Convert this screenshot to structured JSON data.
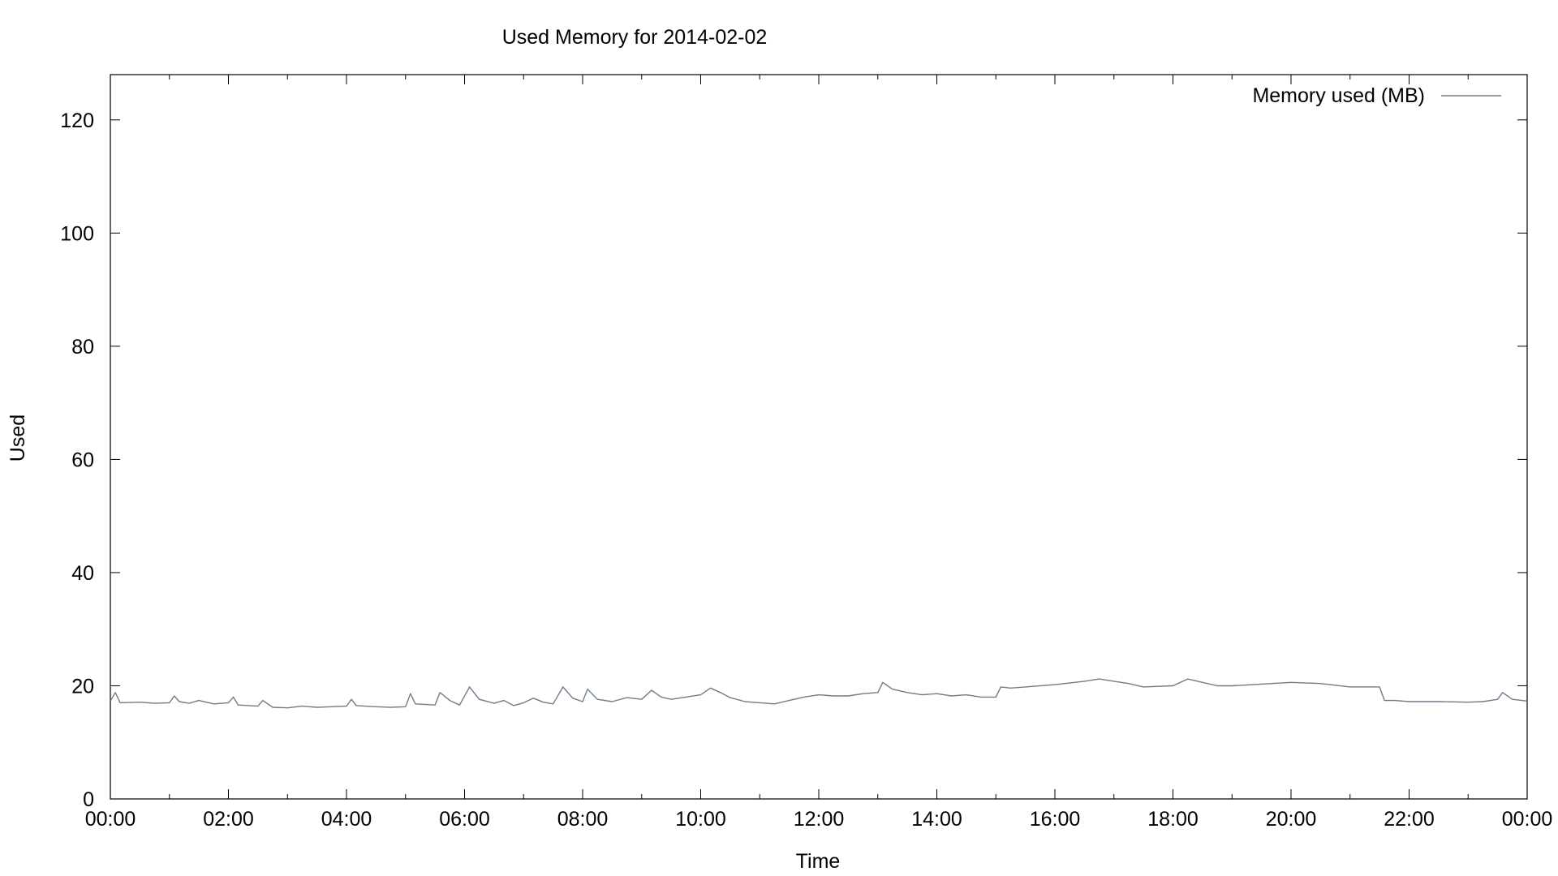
{
  "chart_data": {
    "type": "line",
    "title": "Used Memory for 2014-02-02",
    "xlabel": "Time",
    "ylabel": "Used",
    "x_ticks": [
      "00:00",
      "02:00",
      "04:00",
      "06:00",
      "08:00",
      "10:00",
      "12:00",
      "14:00",
      "16:00",
      "18:00",
      "20:00",
      "22:00",
      "00:00"
    ],
    "y_ticks": [
      0,
      20,
      40,
      60,
      80,
      100,
      120
    ],
    "xlim": [
      "00:00",
      "24:00"
    ],
    "ylim": [
      0,
      128
    ],
    "grid": false,
    "legend_position": "top-right",
    "colors": {
      "series": "#6f7c8b",
      "axes": "#000000",
      "background": "#ffffff"
    },
    "series": [
      {
        "name": "Memory used (MB)",
        "points": [
          [
            "00:00",
            17.3
          ],
          [
            "00:05",
            18.8
          ],
          [
            "00:10",
            17.0
          ],
          [
            "00:30",
            17.1
          ],
          [
            "00:45",
            16.9
          ],
          [
            "01:00",
            17.0
          ],
          [
            "01:05",
            18.2
          ],
          [
            "01:10",
            17.2
          ],
          [
            "01:20",
            16.9
          ],
          [
            "01:30",
            17.4
          ],
          [
            "01:45",
            16.8
          ],
          [
            "02:00",
            17.0
          ],
          [
            "02:05",
            18.0
          ],
          [
            "02:10",
            16.6
          ],
          [
            "02:30",
            16.4
          ],
          [
            "02:35",
            17.4
          ],
          [
            "02:45",
            16.2
          ],
          [
            "03:00",
            16.1
          ],
          [
            "03:15",
            16.4
          ],
          [
            "03:30",
            16.2
          ],
          [
            "03:45",
            16.3
          ],
          [
            "04:00",
            16.4
          ],
          [
            "04:05",
            17.6
          ],
          [
            "04:10",
            16.5
          ],
          [
            "04:30",
            16.3
          ],
          [
            "04:45",
            16.2
          ],
          [
            "05:00",
            16.3
          ],
          [
            "05:05",
            18.6
          ],
          [
            "05:10",
            16.8
          ],
          [
            "05:30",
            16.6
          ],
          [
            "05:35",
            18.8
          ],
          [
            "05:45",
            17.4
          ],
          [
            "05:55",
            16.6
          ],
          [
            "06:05",
            19.8
          ],
          [
            "06:15",
            17.6
          ],
          [
            "06:30",
            16.9
          ],
          [
            "06:40",
            17.4
          ],
          [
            "06:50",
            16.5
          ],
          [
            "07:00",
            17.0
          ],
          [
            "07:10",
            17.8
          ],
          [
            "07:20",
            17.1
          ],
          [
            "07:30",
            16.8
          ],
          [
            "07:40",
            19.8
          ],
          [
            "07:50",
            17.8
          ],
          [
            "08:00",
            17.2
          ],
          [
            "08:05",
            19.4
          ],
          [
            "08:15",
            17.6
          ],
          [
            "08:30",
            17.2
          ],
          [
            "08:45",
            17.9
          ],
          [
            "09:00",
            17.6
          ],
          [
            "09:10",
            19.2
          ],
          [
            "09:20",
            18.0
          ],
          [
            "09:30",
            17.6
          ],
          [
            "09:45",
            18.0
          ],
          [
            "10:00",
            18.4
          ],
          [
            "10:10",
            19.6
          ],
          [
            "10:20",
            18.8
          ],
          [
            "10:30",
            17.9
          ],
          [
            "10:45",
            17.2
          ],
          [
            "11:00",
            17.0
          ],
          [
            "11:15",
            16.8
          ],
          [
            "11:30",
            17.4
          ],
          [
            "11:45",
            18.0
          ],
          [
            "12:00",
            18.4
          ],
          [
            "12:15",
            18.2
          ],
          [
            "12:30",
            18.2
          ],
          [
            "12:45",
            18.6
          ],
          [
            "13:00",
            18.8
          ],
          [
            "13:05",
            20.6
          ],
          [
            "13:15",
            19.4
          ],
          [
            "13:30",
            18.8
          ],
          [
            "13:45",
            18.4
          ],
          [
            "14:00",
            18.6
          ],
          [
            "14:15",
            18.2
          ],
          [
            "14:30",
            18.4
          ],
          [
            "14:45",
            18.0
          ],
          [
            "15:00",
            18.0
          ],
          [
            "15:05",
            19.8
          ],
          [
            "15:15",
            19.6
          ],
          [
            "15:30",
            19.8
          ],
          [
            "16:00",
            20.2
          ],
          [
            "16:30",
            20.8
          ],
          [
            "16:45",
            21.2
          ],
          [
            "17:00",
            20.8
          ],
          [
            "17:15",
            20.4
          ],
          [
            "17:30",
            19.8
          ],
          [
            "18:00",
            20.0
          ],
          [
            "18:15",
            21.2
          ],
          [
            "18:30",
            20.6
          ],
          [
            "18:45",
            20.0
          ],
          [
            "19:00",
            20.0
          ],
          [
            "19:30",
            20.3
          ],
          [
            "20:00",
            20.6
          ],
          [
            "20:30",
            20.4
          ],
          [
            "21:00",
            19.8
          ],
          [
            "21:30",
            19.8
          ],
          [
            "21:35",
            17.4
          ],
          [
            "21:45",
            17.4
          ],
          [
            "22:00",
            17.2
          ],
          [
            "22:30",
            17.2
          ],
          [
            "23:00",
            17.1
          ],
          [
            "23:15",
            17.2
          ],
          [
            "23:30",
            17.6
          ],
          [
            "23:35",
            18.8
          ],
          [
            "23:45",
            17.6
          ],
          [
            "24:00",
            17.3
          ]
        ]
      }
    ]
  }
}
